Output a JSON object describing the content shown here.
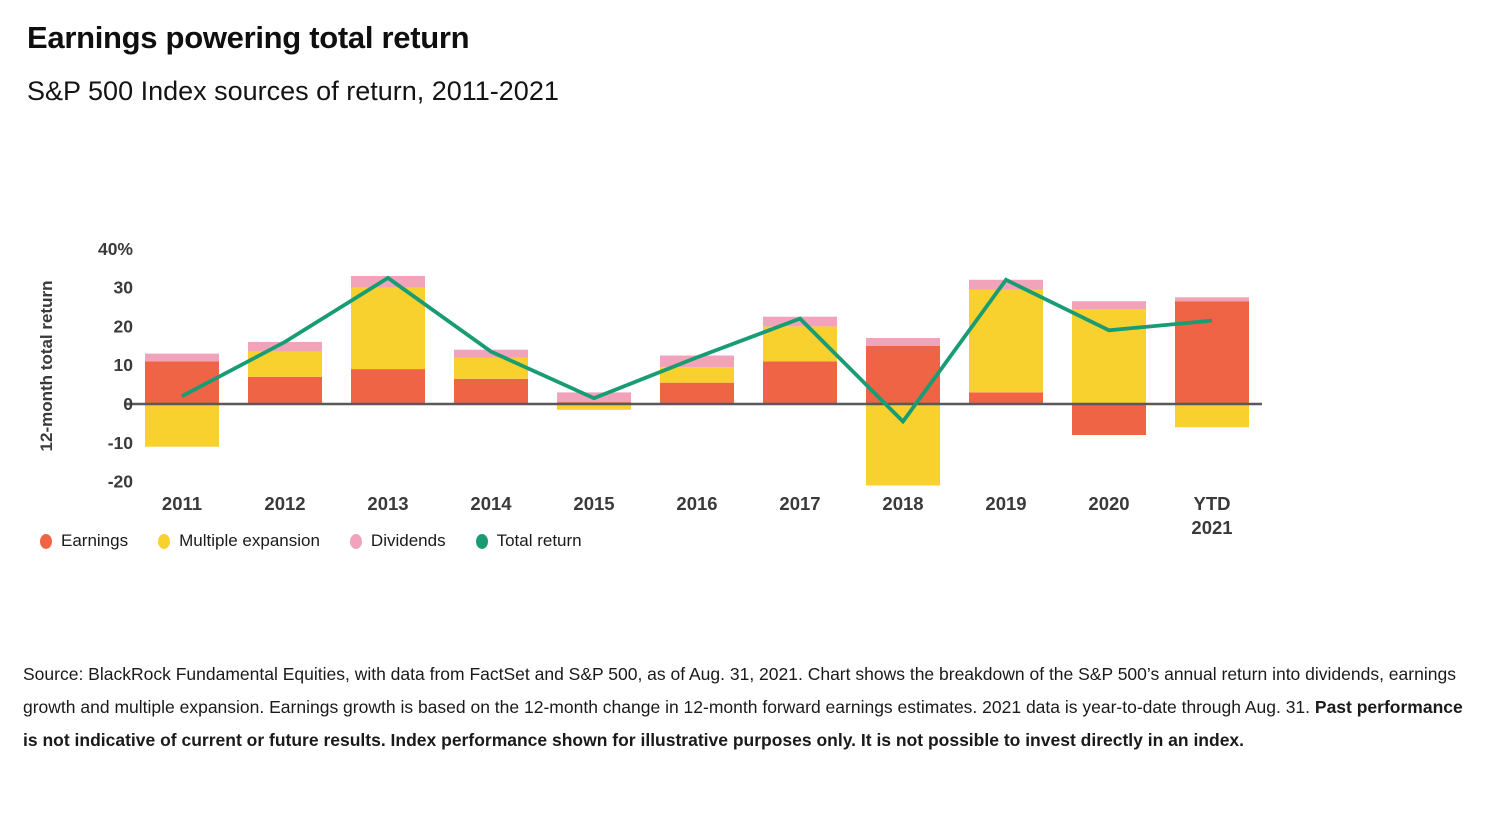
{
  "header": {
    "title": "Earnings powering total return",
    "subtitle": "S&P 500 Index sources of return, 2011-2021"
  },
  "footer": {
    "source_text": "Source: BlackRock Fundamental Equities, with data from FactSet and S&P 500, as of Aug. 31, 2021. Chart shows the breakdown of the S&P 500’s annual return into dividends, earnings growth and multiple expansion. Earnings growth is based on the 12-month change in 12-month forward earnings estimates. 2021 data is year-to-date through Aug. 31. ",
    "disclaimer_bold": "Past performance is not indicative of current or future results. Index performance shown for illustrative purposes only. It is not possible to invest directly in an index."
  },
  "chart_data": {
    "type": "bar",
    "subtype": "stacked-bar-with-line",
    "title": "Earnings powering total return",
    "subtitle": "S&P 500 Index sources of return, 2011-2021",
    "ylabel": "12-month total return",
    "xlabel": "",
    "ylim": [
      -24,
      43
    ],
    "grid": false,
    "legend_position": "bottom-left",
    "yticks": [
      40,
      30,
      20,
      10,
      0,
      -10,
      -20
    ],
    "ytick_labels": [
      "40%",
      "30",
      "20",
      "10",
      "0",
      "-10",
      "-20"
    ],
    "categories": [
      "2011",
      "2012",
      "2013",
      "2014",
      "2015",
      "2016",
      "2017",
      "2018",
      "2019",
      "2020",
      "YTD 2021"
    ],
    "series": [
      {
        "name": "Earnings",
        "color": "#EE6445",
        "values": [
          11,
          7,
          9,
          6.5,
          0.5,
          5.5,
          11,
          15,
          3,
          -8,
          26.5
        ]
      },
      {
        "name": "Multiple expansion",
        "color": "#F9D12E",
        "values": [
          -11,
          6.5,
          21,
          5.5,
          -1.5,
          4,
          9,
          -21,
          26.5,
          24.5,
          -6
        ]
      },
      {
        "name": "Dividends",
        "color": "#F1A3BB",
        "values": [
          2,
          2.5,
          3,
          2,
          2.5,
          3,
          2.5,
          2,
          2.5,
          2,
          1
        ]
      }
    ],
    "line_series": {
      "name": "Total return",
      "color": "#189C74",
      "values": [
        2,
        16,
        32.5,
        13.5,
        1.5,
        12,
        22,
        -4.5,
        32,
        19,
        21.5
      ]
    },
    "axis_color": "#58595B",
    "text_color": "#3A3A3B"
  }
}
